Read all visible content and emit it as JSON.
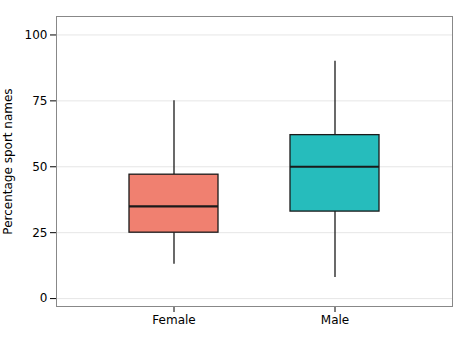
{
  "chart_data": {
    "type": "box",
    "categories": [
      "Female",
      "Male"
    ],
    "whisker_low": [
      13,
      8
    ],
    "q1": [
      25,
      33
    ],
    "median": [
      35,
      50
    ],
    "q3": [
      47,
      62
    ],
    "whisker_high": [
      75,
      90
    ],
    "colors": [
      "#F08070",
      "#26BCBC"
    ],
    "ylabel": "Percentage sport names",
    "ylim": [
      -3,
      107
    ],
    "yticks": [
      0,
      25,
      50,
      75,
      100
    ],
    "grid": true
  }
}
